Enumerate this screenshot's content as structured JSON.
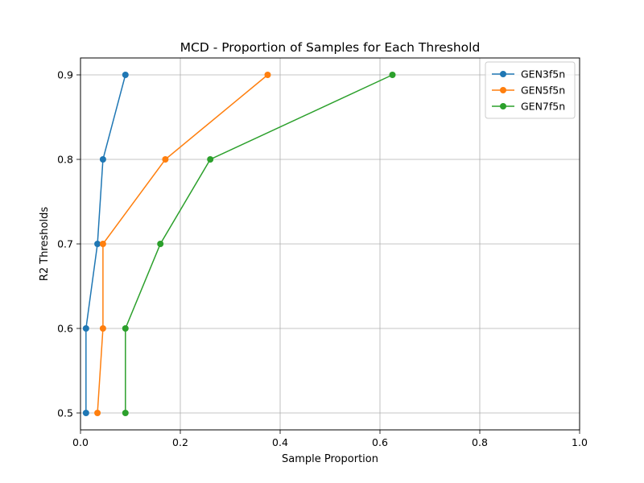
{
  "chart_data": {
    "type": "line",
    "title": "MCD - Proportion of Samples for Each Threshold",
    "xlabel": "Sample Proportion",
    "ylabel": "R2 Thresholds",
    "xlim": [
      0,
      1.0
    ],
    "ylim": [
      0.48,
      0.92
    ],
    "x_ticks": [
      "0.0",
      "0.2",
      "0.4",
      "0.6",
      "0.8",
      "1.0"
    ],
    "y_ticks": [
      "0.5",
      "0.6",
      "0.7",
      "0.8",
      "0.9"
    ],
    "grid": true,
    "legend_position": "top-right",
    "series": [
      {
        "name": "GEN3f5n",
        "color": "#1f77b4",
        "points": [
          [
            0.011,
            0.5
          ],
          [
            0.011,
            0.6
          ],
          [
            0.034,
            0.7
          ],
          [
            0.045,
            0.8
          ],
          [
            0.09,
            0.9
          ]
        ]
      },
      {
        "name": "GEN5f5n",
        "color": "#ff7f0e",
        "points": [
          [
            0.034,
            0.5
          ],
          [
            0.045,
            0.6
          ],
          [
            0.045,
            0.7
          ],
          [
            0.17,
            0.8
          ],
          [
            0.375,
            0.9
          ]
        ]
      },
      {
        "name": "GEN7f5n",
        "color": "#2ca02c",
        "points": [
          [
            0.09,
            0.5
          ],
          [
            0.09,
            0.6
          ],
          [
            0.16,
            0.7
          ],
          [
            0.26,
            0.8
          ],
          [
            0.625,
            0.9
          ]
        ]
      }
    ]
  }
}
